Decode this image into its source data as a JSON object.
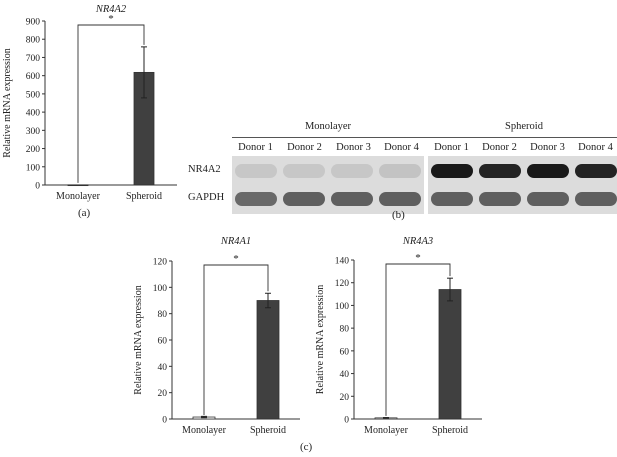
{
  "chart_data": [
    {
      "panel": "(a)",
      "type": "bar",
      "title": "NR4A2",
      "ylabel": "Relative mRNA expression",
      "xlabel": "",
      "categories": [
        "Monolayer",
        "Spheroid"
      ],
      "values": [
        1,
        618
      ],
      "errors": [
        0,
        140
      ],
      "ylim": [
        0,
        900
      ],
      "yticks": [
        0,
        100,
        200,
        300,
        400,
        500,
        600,
        700,
        800,
        900
      ],
      "significance": "*",
      "colors": [
        "#ffffff",
        "#404040"
      ],
      "grid": false
    },
    {
      "panel": "(c)",
      "type": "bar",
      "title": "NR4A1",
      "ylabel": "Relative mRNA expression",
      "xlabel": "",
      "categories": [
        "Monolayer",
        "Spheroid"
      ],
      "values": [
        1.5,
        90
      ],
      "errors": [
        0.5,
        5.5
      ],
      "ylim": [
        0,
        120
      ],
      "yticks": [
        0,
        20,
        40,
        60,
        80,
        100,
        120
      ],
      "significance": "*",
      "colors": [
        "#ffffff",
        "#404040"
      ],
      "grid": false
    },
    {
      "panel": "(c)",
      "type": "bar",
      "title": "NR4A3",
      "ylabel": "Relative mRNA expression",
      "xlabel": "",
      "categories": [
        "Monolayer",
        "Spheroid"
      ],
      "values": [
        1,
        114
      ],
      "errors": [
        0.3,
        10
      ],
      "ylim": [
        0,
        140
      ],
      "yticks": [
        0,
        20,
        40,
        60,
        80,
        100,
        120,
        140
      ],
      "significance": "*",
      "colors": [
        "#ffffff",
        "#404040"
      ],
      "grid": false
    }
  ],
  "panel_labels": {
    "a": "(a)",
    "b": "(b)",
    "c": "(c)"
  },
  "blot": {
    "groups": [
      "Monolayer",
      "Spheroid"
    ],
    "lanes": [
      "Donor 1",
      "Donor 2",
      "Donor 3",
      "Donor 4",
      "Donor 1",
      "Donor 2",
      "Donor 3",
      "Donor 4"
    ],
    "rows": [
      "NR4A2",
      "GAPDH"
    ],
    "band_levels": {
      "NR4A2": [
        0.08,
        0.08,
        0.08,
        0.1,
        0.95,
        0.9,
        0.95,
        0.9
      ],
      "GAPDH": [
        0.55,
        0.6,
        0.6,
        0.6,
        0.6,
        0.6,
        0.6,
        0.6
      ]
    }
  }
}
